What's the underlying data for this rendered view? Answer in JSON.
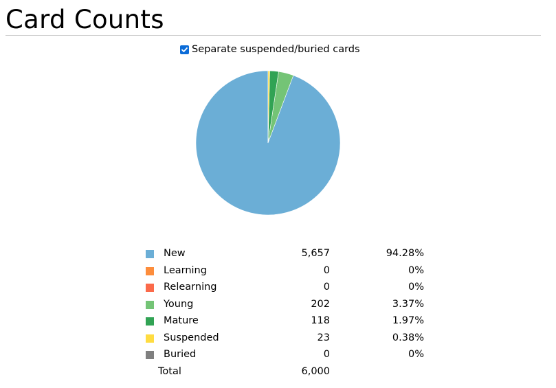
{
  "header": {
    "title": "Card Counts"
  },
  "options": {
    "separate_label": "Separate suspended/buried cards",
    "separate_checked": true
  },
  "colors": {
    "new": "#6baed6",
    "learning": "#fd8d3c",
    "relearning": "#fb6a4a",
    "young": "#74c476",
    "mature": "#31a354",
    "suspended": "#ffdc41",
    "buried": "#7f7f7f",
    "checkbox": "#0b6cd8"
  },
  "chart_data": {
    "type": "pie",
    "slices": [
      {
        "key": "new",
        "label": "New",
        "value": 5657,
        "count_text": "5,657",
        "percent_text": "94.28%",
        "color": "#6baed6"
      },
      {
        "key": "learning",
        "label": "Learning",
        "value": 0,
        "count_text": "0",
        "percent_text": "0%",
        "color": "#fd8d3c"
      },
      {
        "key": "relearning",
        "label": "Relearning",
        "value": 0,
        "count_text": "0",
        "percent_text": "0%",
        "color": "#fb6a4a"
      },
      {
        "key": "young",
        "label": "Young",
        "value": 202,
        "count_text": "202",
        "percent_text": "3.37%",
        "color": "#74c476"
      },
      {
        "key": "mature",
        "label": "Mature",
        "value": 118,
        "count_text": "118",
        "percent_text": "1.97%",
        "color": "#31a354"
      },
      {
        "key": "suspended",
        "label": "Suspended",
        "value": 23,
        "count_text": "23",
        "percent_text": "0.38%",
        "color": "#ffdc41"
      },
      {
        "key": "buried",
        "label": "Buried",
        "value": 0,
        "count_text": "0",
        "percent_text": "0%",
        "color": "#7f7f7f"
      }
    ],
    "direction": "counterclockwise from top",
    "legend_placement": "below",
    "total_label": "Total",
    "total_text": "6,000"
  }
}
